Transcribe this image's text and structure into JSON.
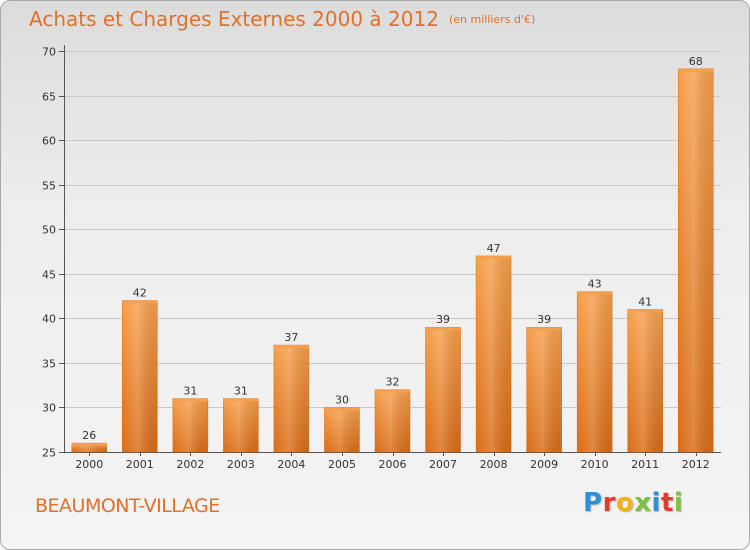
{
  "header": {
    "title": "Achats et Charges Externes 2000 à 2012",
    "unit": "(en milliers d'€)"
  },
  "footer": {
    "town": "BEAUMONT-VILLAGE",
    "logo_letters": [
      "P",
      "r",
      "o",
      "x",
      "i",
      "t",
      "i"
    ]
  },
  "colors": {
    "bar_light": "#f6a04d",
    "bar_dark": "#d96c17",
    "title": "#e0702a",
    "grid": "#c8c8c8"
  },
  "chart_data": {
    "type": "bar",
    "title": "Achats et Charges Externes 2000 à 2012",
    "subtitle": "(en milliers d'€)",
    "categories": [
      "2000",
      "2001",
      "2002",
      "2003",
      "2004",
      "2005",
      "2006",
      "2007",
      "2008",
      "2009",
      "2010",
      "2011",
      "2012"
    ],
    "values": [
      26,
      42,
      31,
      31,
      37,
      30,
      32,
      39,
      47,
      39,
      43,
      41,
      68
    ],
    "ylim": [
      25,
      70
    ],
    "yticks": [
      25,
      30,
      35,
      40,
      45,
      50,
      55,
      60,
      65,
      70
    ],
    "grid": true,
    "legend": "none"
  }
}
